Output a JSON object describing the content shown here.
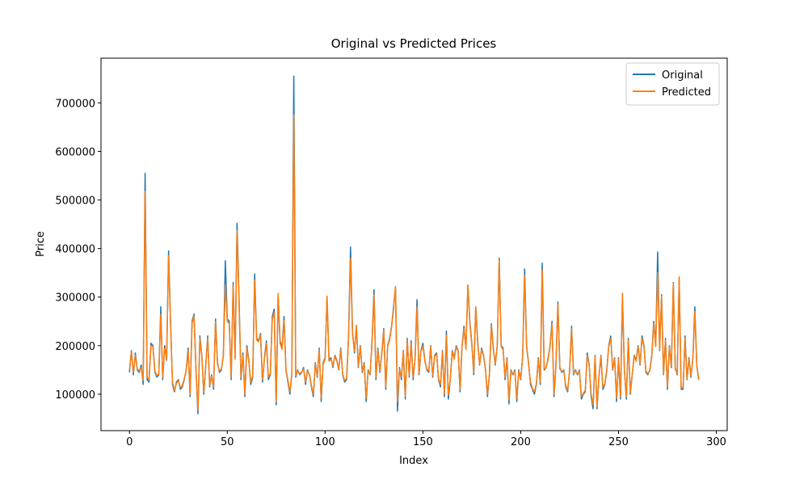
{
  "chart_data": {
    "type": "line",
    "title": "Original vs Predicted Prices",
    "x_label": "Index",
    "y_label": "Price",
    "legend": "upper right",
    "grid": false,
    "xlim": [
      -14.55,
      305.55
    ],
    "ylim": [
      25000,
      792000
    ],
    "xticks": [
      0,
      50,
      100,
      150,
      200,
      250,
      300
    ],
    "yticks": [
      100000,
      200000,
      300000,
      400000,
      500000,
      600000,
      700000
    ],
    "x": [
      0,
      1,
      2,
      3,
      4,
      5,
      6,
      7,
      8,
      9,
      10,
      11,
      12,
      13,
      14,
      15,
      16,
      17,
      18,
      19,
      20,
      21,
      22,
      23,
      24,
      25,
      26,
      27,
      28,
      29,
      30,
      31,
      32,
      33,
      34,
      35,
      36,
      37,
      38,
      39,
      40,
      41,
      42,
      43,
      44,
      45,
      46,
      47,
      48,
      49,
      50,
      51,
      52,
      53,
      54,
      55,
      56,
      57,
      58,
      59,
      60,
      61,
      62,
      63,
      64,
      65,
      66,
      67,
      68,
      69,
      70,
      71,
      72,
      73,
      74,
      75,
      76,
      77,
      78,
      79,
      80,
      81,
      82,
      83,
      84,
      85,
      86,
      87,
      88,
      89,
      90,
      91,
      92,
      93,
      94,
      95,
      96,
      97,
      98,
      99,
      100,
      101,
      102,
      103,
      104,
      105,
      106,
      107,
      108,
      109,
      110,
      111,
      112,
      113,
      114,
      115,
      116,
      117,
      118,
      119,
      120,
      121,
      122,
      123,
      124,
      125,
      126,
      127,
      128,
      129,
      130,
      131,
      132,
      133,
      134,
      135,
      136,
      137,
      138,
      139,
      140,
      141,
      142,
      143,
      144,
      145,
      146,
      147,
      148,
      149,
      150,
      151,
      152,
      153,
      154,
      155,
      156,
      157,
      158,
      159,
      160,
      161,
      162,
      163,
      164,
      165,
      166,
      167,
      168,
      169,
      170,
      171,
      172,
      173,
      174,
      175,
      176,
      177,
      178,
      179,
      180,
      181,
      182,
      183,
      184,
      185,
      186,
      187,
      188,
      189,
      190,
      191,
      192,
      193,
      194,
      195,
      196,
      197,
      198,
      199,
      200,
      201,
      202,
      203,
      204,
      205,
      206,
      207,
      208,
      209,
      210,
      211,
      212,
      213,
      214,
      215,
      216,
      217,
      218,
      219,
      220,
      221,
      222,
      223,
      224,
      225,
      226,
      227,
      228,
      229,
      230,
      231,
      232,
      233,
      234,
      235,
      236,
      237,
      238,
      239,
      240,
      241,
      242,
      243,
      244,
      245,
      246,
      247,
      248,
      249,
      250,
      251,
      252,
      253,
      254,
      255,
      256,
      257,
      258,
      259,
      260,
      261,
      262,
      263,
      264,
      265,
      266,
      267,
      268,
      269,
      270,
      271,
      272,
      273,
      274,
      275,
      276,
      277,
      278,
      279,
      280,
      281,
      282,
      283,
      284,
      285,
      286,
      287,
      288,
      289,
      290,
      291
    ],
    "series": [
      {
        "name": "Original",
        "color": "#1f77b4",
        "values": [
          145000,
          190000,
          140000,
          185000,
          150000,
          145000,
          160000,
          120000,
          555000,
          130000,
          125000,
          205000,
          200000,
          145000,
          135000,
          140000,
          280000,
          130000,
          200000,
          170000,
          395000,
          250000,
          120000,
          105000,
          125000,
          130000,
          110000,
          115000,
          130000,
          150000,
          195000,
          95000,
          250000,
          265000,
          150000,
          60000,
          220000,
          180000,
          100000,
          160000,
          220000,
          115000,
          140000,
          110000,
          255000,
          165000,
          145000,
          150000,
          180000,
          375000,
          255000,
          250000,
          130000,
          330000,
          175000,
          452000,
          300000,
          130000,
          185000,
          95000,
          200000,
          170000,
          120000,
          135000,
          348000,
          215000,
          210000,
          225000,
          125000,
          175000,
          210000,
          130000,
          140000,
          260000,
          275000,
          78000,
          305000,
          210000,
          195000,
          260000,
          150000,
          125000,
          100000,
          140000,
          755000,
          135000,
          150000,
          140000,
          145000,
          155000,
          120000,
          150000,
          140000,
          115000,
          95000,
          165000,
          135000,
          195000,
          85000,
          165000,
          175000,
          300000,
          170000,
          175000,
          155000,
          180000,
          170000,
          150000,
          195000,
          140000,
          125000,
          130000,
          220000,
          403000,
          230000,
          185000,
          240000,
          155000,
          200000,
          145000,
          165000,
          85000,
          150000,
          140000,
          210000,
          315000,
          130000,
          195000,
          145000,
          185000,
          235000,
          110000,
          200000,
          215000,
          240000,
          280000,
          320000,
          65000,
          155000,
          130000,
          190000,
          90000,
          215000,
          135000,
          210000,
          130000,
          175000,
          295000,
          140000,
          190000,
          205000,
          170000,
          150000,
          145000,
          200000,
          135000,
          180000,
          185000,
          130000,
          115000,
          190000,
          95000,
          230000,
          90000,
          130000,
          190000,
          175000,
          200000,
          190000,
          105000,
          200000,
          240000,
          195000,
          325000,
          250000,
          205000,
          140000,
          280000,
          210000,
          160000,
          195000,
          180000,
          150000,
          95000,
          140000,
          245000,
          195000,
          160000,
          200000,
          380000,
          200000,
          195000,
          130000,
          175000,
          80000,
          150000,
          140000,
          150000,
          85000,
          150000,
          130000,
          180000,
          358000,
          200000,
          165000,
          120000,
          110000,
          100000,
          120000,
          175000,
          120000,
          370000,
          150000,
          155000,
          175000,
          200000,
          250000,
          95000,
          160000,
          290000,
          155000,
          145000,
          150000,
          115000,
          105000,
          150000,
          240000,
          140000,
          150000,
          140000,
          150000,
          90000,
          100000,
          105000,
          185000,
          160000,
          95000,
          70000,
          180000,
          70000,
          135000,
          180000,
          110000,
          120000,
          150000,
          200000,
          220000,
          150000,
          175000,
          85000,
          175000,
          90000,
          300000,
          150000,
          90000,
          215000,
          100000,
          140000,
          180000,
          170000,
          200000,
          160000,
          220000,
          200000,
          145000,
          140000,
          150000,
          180000,
          250000,
          200000,
          393000,
          190000,
          305000,
          140000,
          215000,
          110000,
          200000,
          155000,
          330000,
          155000,
          140000,
          340000,
          110000,
          110000,
          220000,
          130000,
          175000,
          135000,
          175000,
          280000,
          160000,
          130000
        ]
      },
      {
        "name": "Predicted",
        "color": "#ff7f0e",
        "values": [
          150000,
          188000,
          145000,
          180000,
          152000,
          148000,
          155000,
          128000,
          518000,
          135000,
          130000,
          200000,
          198000,
          148000,
          138000,
          142000,
          265000,
          135000,
          195000,
          172000,
          385000,
          245000,
          125000,
          108000,
          122000,
          128000,
          113000,
          118000,
          132000,
          148000,
          190000,
          100000,
          245000,
          262000,
          152000,
          68000,
          215000,
          178000,
          105000,
          158000,
          215000,
          118000,
          138000,
          115000,
          250000,
          162000,
          148000,
          152000,
          178000,
          325000,
          250000,
          245000,
          135000,
          325000,
          172000,
          437000,
          292000,
          135000,
          180000,
          100000,
          195000,
          168000,
          125000,
          138000,
          335000,
          212000,
          208000,
          222000,
          130000,
          172000,
          205000,
          135000,
          142000,
          255000,
          268000,
          85000,
          308000,
          205000,
          192000,
          252000,
          152000,
          128000,
          105000,
          142000,
          675000,
          138000,
          148000,
          142000,
          146000,
          152000,
          125000,
          148000,
          140000,
          118000,
          100000,
          162000,
          138000,
          192000,
          92000,
          162000,
          172000,
          302000,
          168000,
          172000,
          158000,
          178000,
          168000,
          152000,
          192000,
          142000,
          128000,
          132000,
          215000,
          380000,
          225000,
          188000,
          242000,
          158000,
          198000,
          148000,
          162000,
          92000,
          148000,
          142000,
          205000,
          305000,
          135000,
          192000,
          148000,
          182000,
          232000,
          115000,
          198000,
          212000,
          238000,
          275000,
          322000,
          85000,
          152000,
          135000,
          188000,
          95000,
          212000,
          138000,
          205000,
          135000,
          172000,
          280000,
          142000,
          188000,
          200000,
          168000,
          152000,
          148000,
          198000,
          138000,
          178000,
          182000,
          132000,
          120000,
          188000,
          100000,
          222000,
          98000,
          132000,
          188000,
          172000,
          198000,
          188000,
          110000,
          198000,
          235000,
          192000,
          325000,
          245000,
          202000,
          145000,
          280000,
          205000,
          162000,
          192000,
          178000,
          152000,
          100000,
          142000,
          242000,
          192000,
          162000,
          198000,
          375000,
          198000,
          192000,
          135000,
          172000,
          88000,
          148000,
          142000,
          148000,
          92000,
          148000,
          132000,
          178000,
          345000,
          198000,
          162000,
          125000,
          112000,
          105000,
          122000,
          172000,
          125000,
          355000,
          152000,
          155000,
          172000,
          198000,
          245000,
          100000,
          162000,
          285000,
          152000,
          148000,
          148000,
          118000,
          108000,
          148000,
          235000,
          142000,
          148000,
          142000,
          148000,
          95000,
          102000,
          108000,
          180000,
          158000,
          100000,
          78000,
          178000,
          75000,
          138000,
          178000,
          115000,
          122000,
          148000,
          198000,
          215000,
          152000,
          172000,
          92000,
          172000,
          95000,
          308000,
          148000,
          95000,
          212000,
          102000,
          142000,
          178000,
          168000,
          198000,
          162000,
          215000,
          198000,
          148000,
          142000,
          148000,
          178000,
          245000,
          198000,
          350000,
          192000,
          302000,
          142000,
          212000,
          115000,
          198000,
          158000,
          328000,
          152000,
          142000,
          342000,
          112000,
          115000,
          215000,
          132000,
          172000,
          138000,
          172000,
          270000,
          158000,
          132000
        ]
      }
    ]
  }
}
